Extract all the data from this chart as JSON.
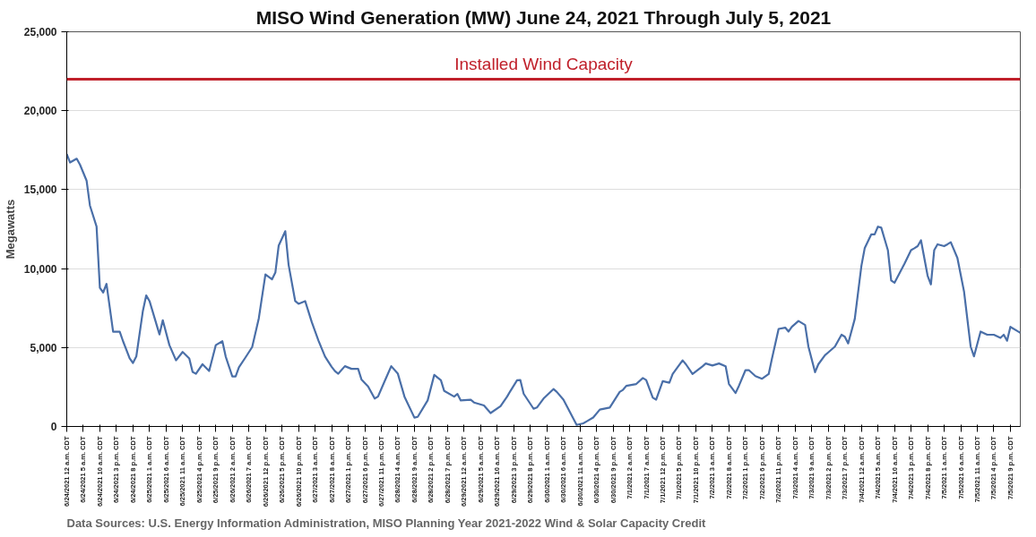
{
  "chart_data": {
    "type": "line",
    "title": "MISO Wind Generation (MW) June 24, 2021 Through July 5, 2021",
    "ylabel": "Megawatts",
    "annotations": [
      "Data Sources: U.S. Energy Information Administration, MISO Planning Year 2021-2022 Wind & Solar Capacity Credit"
    ],
    "grid": "y",
    "marker": "none",
    "line_style": "solid",
    "xlim": [
      "2021-06-24T00:00",
      "2021-07-06T00:00"
    ],
    "ylim": [
      0,
      25000
    ],
    "yticks": [
      {
        "value": 0,
        "label": "0"
      },
      {
        "value": 5000,
        "label": "5,000"
      },
      {
        "value": 10000,
        "label": "10,000"
      },
      {
        "value": 15000,
        "label": "15,000"
      },
      {
        "value": 20000,
        "label": "20,000"
      },
      {
        "value": 25000,
        "label": "25,000"
      }
    ],
    "xticks": [
      {
        "value": "2021-06-24T00:00",
        "label": "6/24/2021 12 a.m. CDT"
      },
      {
        "value": "2021-06-24T05:00",
        "label": "6/24/2021 5 a.m. CDT"
      },
      {
        "value": "2021-06-24T10:00",
        "label": "6/24/2021 10 a.m. CDT"
      },
      {
        "value": "2021-06-24T15:00",
        "label": "6/24/2021 3 p.m. CDT"
      },
      {
        "value": "2021-06-24T20:00",
        "label": "6/24/2021 8 p.m. CDT"
      },
      {
        "value": "2021-06-25T01:00",
        "label": "6/25/2021 1 a.m. CDT"
      },
      {
        "value": "2021-06-25T06:00",
        "label": "6/25/2021 6 a.m. CDT"
      },
      {
        "value": "2021-06-25T11:00",
        "label": "6/25/2021 11 a.m. CDT"
      },
      {
        "value": "2021-06-25T16:00",
        "label": "6/25/2021 4 p.m. CDT"
      },
      {
        "value": "2021-06-25T21:00",
        "label": "6/25/2021 9 p.m. CDT"
      },
      {
        "value": "2021-06-26T02:00",
        "label": "6/26/2021 2 a.m. CDT"
      },
      {
        "value": "2021-06-26T07:00",
        "label": "6/26/2021 7 a.m. CDT"
      },
      {
        "value": "2021-06-26T12:00",
        "label": "6/26/2021 12 p.m. CDT"
      },
      {
        "value": "2021-06-26T17:00",
        "label": "6/26/2021 5 p.m. CDT"
      },
      {
        "value": "2021-06-26T22:00",
        "label": "6/26/2021 10 p.m. CDT"
      },
      {
        "value": "2021-06-27T03:00",
        "label": "6/27/2021 3 a.m. CDT"
      },
      {
        "value": "2021-06-27T08:00",
        "label": "6/27/2021 8 a.m. CDT"
      },
      {
        "value": "2021-06-27T13:00",
        "label": "6/27/2021 1 p.m. CDT"
      },
      {
        "value": "2021-06-27T18:00",
        "label": "6/27/2021 6 p.m. CDT"
      },
      {
        "value": "2021-06-27T23:00",
        "label": "6/27/2021 11 p.m. CDT"
      },
      {
        "value": "2021-06-28T04:00",
        "label": "6/28/2021 4 a.m. CDT"
      },
      {
        "value": "2021-06-28T09:00",
        "label": "6/28/2021 9 a.m. CDT"
      },
      {
        "value": "2021-06-28T14:00",
        "label": "6/28/2021 2 p.m. CDT"
      },
      {
        "value": "2021-06-28T19:00",
        "label": "6/28/2021 7 p.m. CDT"
      },
      {
        "value": "2021-06-29T00:00",
        "label": "6/29/2021 12 a.m. CDT"
      },
      {
        "value": "2021-06-29T05:00",
        "label": "6/29/2021 5 a.m. CDT"
      },
      {
        "value": "2021-06-29T10:00",
        "label": "6/29/2021 10 a.m. CDT"
      },
      {
        "value": "2021-06-29T15:00",
        "label": "6/29/2021 3 p.m. CDT"
      },
      {
        "value": "2021-06-29T20:00",
        "label": "6/29/2021 8 p.m. CDT"
      },
      {
        "value": "2021-06-30T01:00",
        "label": "6/30/2021 1 a.m. CDT"
      },
      {
        "value": "2021-06-30T06:00",
        "label": "6/30/2021 6 a.m. CDT"
      },
      {
        "value": "2021-06-30T11:00",
        "label": "6/30/2021 11 a.m. CDT"
      },
      {
        "value": "2021-06-30T16:00",
        "label": "6/30/2021 4 p.m. CDT"
      },
      {
        "value": "2021-06-30T21:00",
        "label": "6/30/2021 9 p.m. CDT"
      },
      {
        "value": "2021-07-01T02:00",
        "label": "7/1/2021 2 a.m. CDT"
      },
      {
        "value": "2021-07-01T07:00",
        "label": "7/1/2021 7 a.m. CDT"
      },
      {
        "value": "2021-07-01T12:00",
        "label": "7/1/2021 12 p.m. CDT"
      },
      {
        "value": "2021-07-01T17:00",
        "label": "7/1/2021 5 p.m. CDT"
      },
      {
        "value": "2021-07-01T22:00",
        "label": "7/1/2021 10 p.m. CDT"
      },
      {
        "value": "2021-07-02T03:00",
        "label": "7/2/2021 3 a.m. CDT"
      },
      {
        "value": "2021-07-02T08:00",
        "label": "7/2/2021 8 a.m. CDT"
      },
      {
        "value": "2021-07-02T13:00",
        "label": "7/2/2021 1 p.m. CDT"
      },
      {
        "value": "2021-07-02T18:00",
        "label": "7/2/2021 6 p.m. CDT"
      },
      {
        "value": "2021-07-02T23:00",
        "label": "7/2/2021 11 p.m. CDT"
      },
      {
        "value": "2021-07-03T04:00",
        "label": "7/3/2021 4 a.m. CDT"
      },
      {
        "value": "2021-07-03T09:00",
        "label": "7/3/2021 9 a.m. CDT"
      },
      {
        "value": "2021-07-03T14:00",
        "label": "7/3/2021 2 p.m. CDT"
      },
      {
        "value": "2021-07-03T19:00",
        "label": "7/3/2021 7 p.m. CDT"
      },
      {
        "value": "2021-07-04T00:00",
        "label": "7/4/2021 12 a.m. CDT"
      },
      {
        "value": "2021-07-04T05:00",
        "label": "7/4/2021 5 a.m. CDT"
      },
      {
        "value": "2021-07-04T10:00",
        "label": "7/4/2021 10 a.m. CDT"
      },
      {
        "value": "2021-07-04T15:00",
        "label": "7/4/2021 3 p.m. CDT"
      },
      {
        "value": "2021-07-04T20:00",
        "label": "7/4/2021 8 p.m. CDT"
      },
      {
        "value": "2021-07-05T01:00",
        "label": "7/5/2021 1 a.m. CDT"
      },
      {
        "value": "2021-07-05T06:00",
        "label": "7/5/2021 6 a.m. CDT"
      },
      {
        "value": "2021-07-05T11:00",
        "label": "7/5/2021 11 a.m. CDT"
      },
      {
        "value": "2021-07-05T16:00",
        "label": "7/5/2021 4 p.m. CDT"
      },
      {
        "value": "2021-07-05T21:00",
        "label": "7/5/2021 9 p.m. CDT"
      }
    ],
    "ref_lines": [
      {
        "axis": "y",
        "value": 22000,
        "label": "Installed Wind Capacity",
        "color": "#c0202a",
        "line_style": "solid"
      }
    ],
    "series": [
      {
        "color": "#4a6fa8",
        "x": [
          "2021-06-24T00:00",
          "2021-06-24T01:00",
          "2021-06-24T03:00",
          "2021-06-24T04:00",
          "2021-06-24T06:00",
          "2021-06-24T07:00",
          "2021-06-24T09:00",
          "2021-06-24T10:00",
          "2021-06-24T11:00",
          "2021-06-24T12:00",
          "2021-06-24T14:00",
          "2021-06-24T16:00",
          "2021-06-24T17:00",
          "2021-06-24T19:00",
          "2021-06-24T20:00",
          "2021-06-24T21:00",
          "2021-06-24T23:00",
          "2021-06-25T00:00",
          "2021-06-25T01:00",
          "2021-06-25T04:00",
          "2021-06-25T05:00",
          "2021-06-25T07:00",
          "2021-06-25T08:00",
          "2021-06-25T09:00",
          "2021-06-25T11:00",
          "2021-06-25T13:00",
          "2021-06-25T14:00",
          "2021-06-25T15:00",
          "2021-06-25T17:00",
          "2021-06-25T19:00",
          "2021-06-25T21:00",
          "2021-06-25T23:00",
          "2021-06-26T00:00",
          "2021-06-26T02:00",
          "2021-06-26T03:00",
          "2021-06-26T04:00",
          "2021-06-26T06:00",
          "2021-06-26T08:00",
          "2021-06-26T10:00",
          "2021-06-26T12:00",
          "2021-06-26T14:00",
          "2021-06-26T15:00",
          "2021-06-26T16:00",
          "2021-06-26T18:00",
          "2021-06-26T19:00",
          "2021-06-26T21:00",
          "2021-06-26T22:00",
          "2021-06-27T00:00",
          "2021-06-27T02:00",
          "2021-06-27T04:00",
          "2021-06-27T06:00",
          "2021-06-27T08:00",
          "2021-06-27T09:00",
          "2021-06-27T10:00",
          "2021-06-27T12:00",
          "2021-06-27T14:00",
          "2021-06-27T16:00",
          "2021-06-27T17:00",
          "2021-06-27T19:00",
          "2021-06-27T21:00",
          "2021-06-27T22:00",
          "2021-06-28T00:00",
          "2021-06-28T02:00",
          "2021-06-28T04:00",
          "2021-06-28T06:00",
          "2021-06-28T09:00",
          "2021-06-28T10:00",
          "2021-06-28T13:00",
          "2021-06-28T15:00",
          "2021-06-28T17:00",
          "2021-06-28T18:00",
          "2021-06-28T21:00",
          "2021-06-28T22:00",
          "2021-06-28T23:00",
          "2021-06-29T02:00",
          "2021-06-29T03:00",
          "2021-06-29T06:00",
          "2021-06-29T08:00",
          "2021-06-29T11:00",
          "2021-06-29T13:00",
          "2021-06-29T14:00",
          "2021-06-29T16:00",
          "2021-06-29T17:00",
          "2021-06-29T18:00",
          "2021-06-29T21:00",
          "2021-06-29T22:00",
          "2021-06-30T00:00",
          "2021-06-30T03:00",
          "2021-06-30T04:00",
          "2021-06-30T06:00",
          "2021-06-30T10:00",
          "2021-06-30T12:00",
          "2021-06-30T13:00",
          "2021-06-30T15:00",
          "2021-06-30T17:00",
          "2021-06-30T20:00",
          "2021-06-30T23:00",
          "2021-07-01T00:00",
          "2021-07-01T01:00",
          "2021-07-01T04:00",
          "2021-07-01T06:00",
          "2021-07-01T07:00",
          "2021-07-01T09:00",
          "2021-07-01T10:00",
          "2021-07-01T12:00",
          "2021-07-01T14:00",
          "2021-07-01T15:00",
          "2021-07-01T18:00",
          "2021-07-01T19:00",
          "2021-07-01T21:00",
          "2021-07-02T00:00",
          "2021-07-02T01:00",
          "2021-07-02T03:00",
          "2021-07-02T05:00",
          "2021-07-02T07:00",
          "2021-07-02T08:00",
          "2021-07-02T10:00",
          "2021-07-02T11:00",
          "2021-07-02T13:00",
          "2021-07-02T14:00",
          "2021-07-02T16:00",
          "2021-07-02T18:00",
          "2021-07-02T20:00",
          "2021-07-02T21:00",
          "2021-07-02T23:00",
          "2021-07-03T01:00",
          "2021-07-03T02:00",
          "2021-07-03T03:00",
          "2021-07-03T05:00",
          "2021-07-03T07:00",
          "2021-07-03T08:00",
          "2021-07-03T10:00",
          "2021-07-03T11:00",
          "2021-07-03T13:00",
          "2021-07-03T14:00",
          "2021-07-03T16:00",
          "2021-07-03T18:00",
          "2021-07-03T19:00",
          "2021-07-03T20:00",
          "2021-07-03T22:00",
          "2021-07-04T00:00",
          "2021-07-04T01:00",
          "2021-07-04T03:00",
          "2021-07-04T04:00",
          "2021-07-04T05:00",
          "2021-07-04T06:00",
          "2021-07-04T08:00",
          "2021-07-04T09:00",
          "2021-07-04T10:00",
          "2021-07-04T13:00",
          "2021-07-04T15:00",
          "2021-07-04T16:00",
          "2021-07-04T17:00",
          "2021-07-04T18:00",
          "2021-07-04T20:00",
          "2021-07-04T21:00",
          "2021-07-04T22:00",
          "2021-07-04T23:00",
          "2021-07-05T01:00",
          "2021-07-05T02:00",
          "2021-07-05T03:00",
          "2021-07-05T05:00",
          "2021-07-05T07:00",
          "2021-07-05T09:00",
          "2021-07-05T10:00",
          "2021-07-05T12:00",
          "2021-07-05T14:00",
          "2021-07-05T16:00",
          "2021-07-05T18:00",
          "2021-07-05T19:00",
          "2021-07-05T20:00",
          "2021-07-05T21:00",
          "2021-07-05T23:00",
          "2021-07-06T00:00"
        ],
        "values": [
          17250,
          16720,
          16960,
          16580,
          15560,
          13990,
          12660,
          8780,
          8490,
          9030,
          6000,
          6000,
          5400,
          4310,
          4020,
          4430,
          7330,
          8300,
          7940,
          5830,
          6730,
          5150,
          4670,
          4190,
          4720,
          4310,
          3460,
          3340,
          3940,
          3510,
          5150,
          5400,
          4430,
          3170,
          3170,
          3750,
          4380,
          5030,
          6850,
          9630,
          9320,
          9750,
          11450,
          12370,
          10240,
          7940,
          7770,
          7940,
          6610,
          5450,
          4430,
          3780,
          3510,
          3340,
          3820,
          3650,
          3650,
          2980,
          2540,
          1770,
          1890,
          2860,
          3820,
          3340,
          1890,
          560,
          610,
          1650,
          3270,
          2930,
          2250,
          1890,
          2060,
          1650,
          1690,
          1520,
          1330,
          850,
          1280,
          1890,
          2250,
          2930,
          2940,
          2070,
          1120,
          1200,
          1770,
          2370,
          2190,
          1700,
          100,
          200,
          320,
          570,
          1070,
          1200,
          2190,
          2320,
          2570,
          2690,
          3070,
          2940,
          1820,
          1700,
          2870,
          2770,
          3320,
          4190,
          3940,
          3320,
          3810,
          3990,
          3860,
          3990,
          3810,
          2690,
          2120,
          2570,
          3570,
          3570,
          3190,
          3020,
          3320,
          4310,
          6180,
          6260,
          6010,
          6310,
          6680,
          6430,
          5060,
          3440,
          3940,
          4510,
          4690,
          5060,
          5810,
          5680,
          5260,
          6810,
          10170,
          11290,
          12170,
          12170,
          12660,
          12590,
          11170,
          9250,
          9100,
          10300,
          11170,
          11290,
          11420,
          11790,
          9550,
          9000,
          11170,
          11540,
          11420,
          11540,
          11670,
          10670,
          8550,
          5060,
          4440,
          6010,
          5810,
          5810,
          5610,
          5810,
          5430,
          6310,
          6060,
          5930
        ]
      }
    ]
  }
}
